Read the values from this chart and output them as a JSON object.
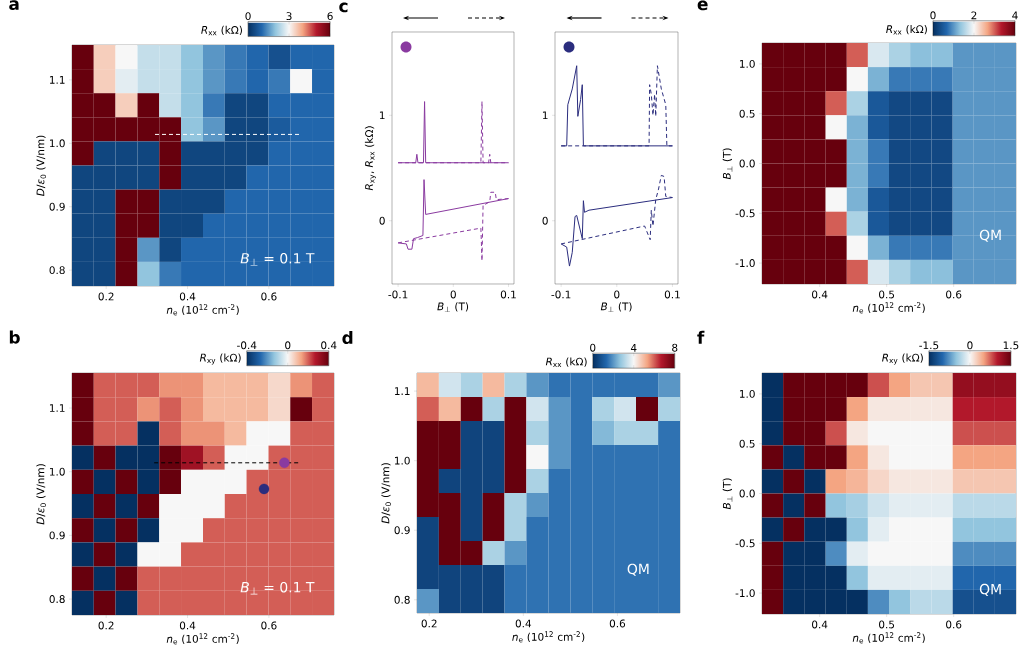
{
  "chart_data": [
    {
      "type": "heatmap",
      "title": "a",
      "xlabel": "*n*$_{e}$ (10$^{12}$ cm$^{-2}$)",
      "ylabel": "*D*/*ε*$_{0}$ (V/nm)",
      "clabel": "*R*$_{xx}$ (kΩ)",
      "annotations": [
        "*B*$_{⊥}$ = 0.1 T"
      ],
      "xlim": [
        0.116,
        0.76
      ],
      "ylim": [
        0.775,
        1.155
      ],
      "xticks": [
        0.2,
        0.4,
        0.6
      ],
      "yticks": [
        0.8,
        0.9,
        {
          "value": 1.0,
          "label": "1.0"
        },
        1.1
      ],
      "clim": [
        0,
        6
      ],
      "cticks": [
        0,
        3,
        6
      ],
      "x": [
        0.143,
        0.196,
        0.25,
        0.304,
        0.357,
        0.411,
        0.465,
        0.518,
        0.572,
        0.626,
        0.679,
        0.733
      ],
      "y": [
        1.136,
        1.098,
        1.06,
        1.022,
        0.984,
        0.946,
        0.908,
        0.87,
        0.832,
        0.794
      ],
      "cells": [
        [
          6,
          3.5,
          3,
          2.5,
          2.5,
          2,
          1.5,
          1.2,
          1,
          0.6,
          1,
          1
        ],
        [
          6,
          3.5,
          2.8,
          2.5,
          2.5,
          2,
          1.5,
          1.2,
          1,
          1.2,
          3,
          1
        ],
        [
          6,
          6,
          3.5,
          6,
          2.5,
          2,
          1.2,
          0.4,
          0.4,
          1,
          1,
          1
        ],
        [
          6,
          6,
          6,
          6,
          6,
          2,
          1.5,
          0.4,
          0.4,
          0.8,
          1,
          1
        ],
        [
          6,
          0.4,
          0.4,
          0.4,
          6,
          0.4,
          0.4,
          0.4,
          0.4,
          1,
          1,
          1
        ],
        [
          0.4,
          0.4,
          0.4,
          0.4,
          6,
          0.4,
          0.4,
          0.4,
          1,
          1,
          1,
          1
        ],
        [
          0.4,
          0.4,
          6,
          6,
          0.4,
          0.4,
          0.4,
          1,
          1,
          1,
          1,
          1
        ],
        [
          0.4,
          0.4,
          6,
          6,
          0.4,
          0.4,
          1,
          1,
          1,
          1,
          1,
          1
        ],
        [
          0.4,
          0.4,
          6,
          1.5,
          0.4,
          1,
          1,
          1,
          1,
          1,
          1,
          1
        ],
        [
          0.4,
          0.4,
          6,
          2,
          1.2,
          1,
          1,
          1,
          1,
          1,
          1,
          1
        ]
      ],
      "series": [
        {
          "type": "line",
          "x": [
            0.32,
            0.68
          ],
          "values": [
            1.014,
            1.014
          ],
          "color": "#ffffff",
          "line_style": "dashed"
        }
      ]
    },
    {
      "type": "line",
      "title": "c",
      "xlabel": "*B*$_{⊥}$ (T)",
      "ylabel": "*R*$_{xy}$, *R*$_{xx}$ (kΩ)",
      "xlim": [
        -0.111,
        0.11
      ],
      "ylim": [
        -0.6,
        1.79
      ],
      "xticks": [
        -0.1,
        0,
        0.1
      ],
      "yticks": [
        0,
        1
      ],
      "series": [
        {
          "color": "#8a3aa0",
          "line_style": "solid",
          "x": [
            -0.1,
            -0.068,
            -0.066,
            -0.064,
            -0.054,
            -0.052,
            -0.05,
            0.1
          ],
          "values": [
            0.55,
            0.55,
            0.63,
            0.55,
            0.55,
            1.13,
            0.55,
            0.55
          ]
        },
        {
          "color": "#8a3aa0",
          "line_style": "dashed",
          "x": [
            -0.1,
            0.05,
            0.052,
            0.054,
            0.064,
            0.066,
            0.068,
            0.1
          ],
          "values": [
            0.55,
            0.55,
            1.13,
            0.55,
            0.55,
            0.63,
            0.55,
            0.55
          ]
        },
        {
          "color": "#8a3aa0",
          "line_style": "solid",
          "x": [
            -0.1,
            -0.085,
            -0.082,
            -0.075,
            -0.072,
            -0.065,
            -0.055,
            -0.053,
            -0.05,
            0.1
          ],
          "values": [
            -0.21,
            -0.22,
            -0.27,
            -0.27,
            -0.17,
            -0.16,
            -0.14,
            0.39,
            0.06,
            0.21
          ]
        },
        {
          "color": "#8a3aa0",
          "line_style": "dashed",
          "x": [
            -0.1,
            0.05,
            0.052,
            0.054,
            0.056,
            0.066,
            0.068,
            0.076,
            0.078,
            0.1
          ],
          "values": [
            -0.21,
            -0.07,
            -0.38,
            0.15,
            0.15,
            0.18,
            0.27,
            0.27,
            0.2,
            0.21
          ]
        }
      ]
    },
    {
      "type": "line",
      "xlabel": "*B*$_{⊥}$ (T)",
      "xlim": [
        -0.111,
        0.11
      ],
      "ylim": [
        -0.6,
        1.79
      ],
      "xticks": [
        -0.1,
        0,
        0.1
      ],
      "yticks": [
        0,
        1
      ],
      "series": [
        {
          "color": "#2b2d7e",
          "line_style": "solid",
          "x": [
            -0.1,
            -0.09,
            -0.088,
            -0.08,
            -0.072,
            -0.07,
            -0.065,
            -0.062,
            -0.06,
            0.1
          ],
          "values": [
            0.71,
            0.71,
            1.1,
            1.25,
            1.47,
            0.99,
            1.15,
            1.29,
            0.71,
            0.71
          ]
        },
        {
          "color": "#2b2d7e",
          "line_style": "dashed",
          "x": [
            -0.1,
            0.058,
            0.059,
            0.062,
            0.065,
            0.068,
            0.07,
            0.073,
            0.08,
            0.088,
            0.09,
            0.1
          ],
          "values": [
            0.71,
            0.71,
            1.29,
            1.2,
            1.0,
            1.2,
            0.99,
            1.47,
            1.25,
            1.1,
            0.71,
            0.71
          ]
        },
        {
          "color": "#2b2d7e",
          "line_style": "solid",
          "x": [
            -0.1,
            -0.09,
            -0.085,
            -0.08,
            -0.075,
            -0.072,
            -0.062,
            -0.06,
            -0.058,
            -0.05,
            0.1
          ],
          "values": [
            -0.22,
            -0.25,
            -0.43,
            -0.3,
            0.04,
            0.05,
            -0.17,
            0.19,
            0.08,
            0.1,
            0.22
          ]
        },
        {
          "color": "#2b2d7e",
          "line_style": "dashed",
          "x": [
            -0.1,
            0.05,
            0.06,
            0.062,
            0.065,
            0.07,
            0.075,
            0.08,
            0.085,
            0.088,
            0.1
          ],
          "values": [
            -0.22,
            -0.05,
            -0.18,
            0.1,
            -0.05,
            0.2,
            0.3,
            0.43,
            0.42,
            0.23,
            0.22
          ]
        }
      ]
    },
    {
      "type": "heatmap",
      "title": "e",
      "xlabel": "*n*$_{e}$ (10$^{12}$ cm$^{-2}$)",
      "ylabel": "*B*$_{⊥}$ (T)",
      "clabel": "*R*$_{xx}$ (kΩ)",
      "annotations": [
        "QM"
      ],
      "xlim": [
        0.314,
        0.693
      ],
      "ylim": [
        -1.21,
        1.21
      ],
      "xticks": [
        0.4,
        0.5,
        0.6
      ],
      "yticks": [
        {
          "value": -1.0,
          "label": "-1.0"
        },
        -0.5,
        {
          "value": 0,
          "label": "0.0"
        },
        0.5,
        {
          "value": 1.0,
          "label": "1.0"
        }
      ],
      "clim": [
        0,
        4
      ],
      "cticks": [
        0,
        2,
        4
      ],
      "x": [
        0.33,
        0.361,
        0.393,
        0.425,
        0.456,
        0.488,
        0.519,
        0.551,
        0.583,
        0.614,
        0.646,
        0.677
      ],
      "y": [
        1.089,
        0.847,
        0.605,
        0.363,
        0.121,
        -0.121,
        -0.363,
        -0.605,
        -0.847,
        -1.089
      ],
      "cells": [
        [
          4,
          4,
          4,
          4,
          3,
          1.8,
          1.5,
          1.3,
          1.3,
          1,
          1,
          1
        ],
        [
          4,
          4,
          4,
          4,
          2,
          1.2,
          0.8,
          0.8,
          0.8,
          1,
          1,
          1
        ],
        [
          4,
          4,
          4,
          3,
          1.5,
          0.5,
          0.3,
          0.3,
          0.3,
          1,
          1,
          1
        ],
        [
          4,
          4,
          4,
          2,
          1.2,
          0.5,
          0.3,
          0.3,
          0.3,
          1,
          1,
          1
        ],
        [
          4,
          4,
          4,
          4,
          1.2,
          0.8,
          0.3,
          0.3,
          0.3,
          1,
          1,
          1
        ],
        [
          4,
          4,
          4,
          4,
          1.2,
          0.8,
          0.3,
          0.3,
          0.3,
          1,
          1,
          1
        ],
        [
          4,
          4,
          4,
          2,
          1.2,
          0.5,
          0.3,
          0.3,
          0.3,
          1,
          1,
          1
        ],
        [
          4,
          4,
          4,
          3,
          1.5,
          0.5,
          0.3,
          0.3,
          0.3,
          1,
          1,
          1
        ],
        [
          4,
          4,
          4,
          4,
          2,
          1.2,
          0.8,
          0.8,
          0.8,
          1,
          1,
          1
        ],
        [
          4,
          4,
          4,
          4,
          3,
          1.8,
          1.5,
          1.3,
          1.3,
          1,
          1,
          1
        ]
      ]
    },
    {
      "type": "heatmap",
      "title": "b",
      "xlabel": "*n*$_{e}$ (10$^{12}$ cm$^{-2}$)",
      "ylabel": "*D*/*ε*$_{0}$ (V/nm)",
      "clabel": "*R*$_{xy}$ (kΩ)",
      "annotations": [
        "*B*$_{⊥}$ = 0.1 T"
      ],
      "xlim": [
        0.116,
        0.76
      ],
      "ylim": [
        0.775,
        1.155
      ],
      "xticks": [
        0.2,
        0.4,
        0.6
      ],
      "yticks": [
        0.8,
        0.9,
        {
          "value": 1.0,
          "label": "1.0"
        },
        1.1
      ],
      "clim": [
        -0.4,
        0.4
      ],
      "cticks": [
        -0.4,
        0,
        0.4
      ],
      "x": [
        0.143,
        0.196,
        0.25,
        0.304,
        0.357,
        0.411,
        0.465,
        0.518,
        0.572,
        0.626,
        0.679,
        0.733
      ],
      "y": [
        1.136,
        1.098,
        1.06,
        1.022,
        0.984,
        0.946,
        0.908,
        0.87,
        0.832,
        0.794
      ],
      "cells": [
        [
          0.4,
          0.2,
          0.2,
          0.2,
          0.15,
          0.15,
          0.1,
          0.1,
          0.1,
          0.05,
          0.15,
          0.2
        ],
        [
          0.4,
          0.2,
          0.2,
          0.15,
          0.2,
          0.15,
          0.1,
          0.1,
          0.1,
          0.05,
          0.4,
          0.2
        ],
        [
          0.4,
          0.2,
          0.2,
          -0.4,
          0.2,
          0.15,
          0.15,
          0.1,
          0,
          0,
          0.2,
          0.2
        ],
        [
          -0.4,
          0.4,
          -0.4,
          -0.4,
          0.4,
          0.3,
          0.2,
          0,
          0,
          0.2,
          0.2,
          0.2
        ],
        [
          0.4,
          -0.4,
          0.4,
          -0.4,
          0.4,
          0,
          0,
          0,
          0.2,
          0.2,
          0.2,
          0.2
        ],
        [
          -0.4,
          0.4,
          -0.4,
          0.4,
          0,
          0,
          0,
          0.2,
          0.2,
          0.2,
          0.2,
          0.2
        ],
        [
          0.4,
          -0.4,
          0.4,
          -0.4,
          0,
          0,
          0.2,
          0.2,
          0.2,
          0.2,
          0.2,
          0.2
        ],
        [
          -0.4,
          0.4,
          -0.4,
          0,
          0,
          0.2,
          0.2,
          0.2,
          0.2,
          0.2,
          0.2,
          0.2
        ],
        [
          0.4,
          -0.4,
          0.4,
          0.2,
          0.2,
          0.2,
          0.2,
          0.2,
          0.2,
          0.2,
          0.2,
          0.2
        ],
        [
          -0.4,
          0.4,
          -0.4,
          0.2,
          0.2,
          0.2,
          0.2,
          0.2,
          0.2,
          0.2,
          0.2,
          0.2
        ]
      ],
      "series": [
        {
          "type": "line",
          "x": [
            0.318,
            0.675
          ],
          "values": [
            1.014,
            1.014
          ],
          "color": "#000000",
          "line_style": "dashed"
        },
        {
          "type": "scatter",
          "x": [
            0.638
          ],
          "values": [
            1.014
          ],
          "color": "#8a3aa0",
          "marker": "circle"
        },
        {
          "type": "scatter",
          "x": [
            0.588
          ],
          "values": [
            0.973
          ],
          "color": "#2b2d7e",
          "marker": "circle"
        }
      ]
    },
    {
      "type": "heatmap",
      "title": "d",
      "xlabel": "*n*$_{e}$ (10$^{12}$ cm$^{-2}$)",
      "ylabel": "*D*/*ε*$_{0}$ (V/nm)",
      "clabel": "*R*$_{xx}$ (kΩ)",
      "annotations": [
        "QM"
      ],
      "xlim": [
        0.174,
        0.733
      ],
      "ylim": [
        0.781,
        1.126
      ],
      "xticks": [
        0.2,
        0.4,
        0.6
      ],
      "yticks": [
        0.8,
        0.9,
        {
          "value": 1.0,
          "label": "1.0"
        },
        1.1
      ],
      "clim": [
        0,
        8
      ],
      "cticks": [
        0,
        4,
        8
      ],
      "x": [
        0.197,
        0.244,
        0.29,
        0.337,
        0.383,
        0.43,
        0.477,
        0.523,
        0.57,
        0.616,
        0.663,
        0.71
      ],
      "y": [
        1.109,
        1.074,
        1.04,
        1.005,
        0.971,
        0.936,
        0.902,
        0.867,
        0.833,
        0.798
      ],
      "cells": [
        [
          5,
          3.5,
          3,
          5,
          3,
          2,
          1.5,
          1.5,
          1.5,
          1.5,
          1.5,
          2
        ],
        [
          6,
          5,
          8,
          3,
          8,
          3.5,
          2,
          1.5,
          3,
          3.5,
          8,
          3
        ],
        [
          8,
          8,
          0.5,
          0.5,
          8,
          3,
          2,
          1.5,
          2.5,
          3,
          3,
          1.5
        ],
        [
          8,
          8,
          0.5,
          0.5,
          8,
          4,
          2,
          1.5,
          1.5,
          1.5,
          1.5,
          1.5
        ],
        [
          8,
          0.5,
          0.5,
          0.5,
          8,
          3,
          1.5,
          1.5,
          1.5,
          1.5,
          1.5,
          1.5
        ],
        [
          8,
          8,
          0.5,
          8,
          3,
          2,
          1.5,
          1.5,
          1.5,
          1.5,
          1.5,
          1.5
        ],
        [
          0.5,
          8,
          0.5,
          8,
          3,
          1.5,
          1.5,
          1.5,
          1.5,
          1.5,
          1.5,
          1.5
        ],
        [
          0.5,
          8,
          8,
          3,
          2,
          1.5,
          1.5,
          1.5,
          1.5,
          1.5,
          1.5,
          1.5
        ],
        [
          0.5,
          0.5,
          0.5,
          0.5,
          1.5,
          1.5,
          1.5,
          1.5,
          1.5,
          1.5,
          1.5,
          1.5
        ],
        [
          2,
          0.5,
          0.5,
          0.5,
          1.5,
          1.5,
          1.5,
          1.5,
          1.5,
          1.5,
          1.5,
          1.5
        ]
      ]
    },
    {
      "type": "heatmap",
      "title": "f",
      "xlabel": "*n*$_{e}$ (10$^{12}$ cm$^{-2}$)",
      "ylabel": "*B*$_{⊥}$ (T)",
      "clabel": "*R*$_{xy}$ (kΩ)",
      "annotations": [
        "QM"
      ],
      "xlim": [
        0.314,
        0.693
      ],
      "ylim": [
        -1.21,
        1.21
      ],
      "xticks": [
        0.4,
        0.5,
        0.6
      ],
      "yticks": [
        {
          "value": -1.0,
          "label": "-1.0"
        },
        -0.5,
        {
          "value": 0,
          "label": "0.0"
        },
        0.5,
        {
          "value": 1.0,
          "label": "1.0"
        }
      ],
      "clim": [
        -1.5,
        1.5
      ],
      "cticks": [
        -1.5,
        0,
        1.5
      ],
      "x": [
        0.33,
        0.361,
        0.393,
        0.425,
        0.456,
        0.488,
        0.519,
        0.551,
        0.583,
        0.614,
        0.646,
        0.677
      ],
      "y": [
        1.089,
        0.847,
        0.605,
        0.363,
        0.121,
        -0.121,
        -0.363,
        -0.605,
        -0.847,
        -1.089
      ],
      "cells": [
        [
          -1.5,
          1.5,
          1.5,
          1.5,
          1.5,
          0.8,
          0.5,
          0.3,
          0.3,
          1.2,
          1.2,
          1.2
        ],
        [
          -1.5,
          1.5,
          1.5,
          1.5,
          0.5,
          0.1,
          0.1,
          0.1,
          0.1,
          1,
          1,
          1
        ],
        [
          -1.5,
          1.5,
          1.5,
          0.8,
          0.1,
          0,
          0,
          0,
          0,
          0.8,
          0.8,
          0.8
        ],
        [
          1.5,
          -1.5,
          1.5,
          1.5,
          0.5,
          0.1,
          0,
          0,
          0,
          0.5,
          0.5,
          0.5
        ],
        [
          -1.5,
          1.5,
          -1.5,
          0.5,
          0.4,
          0.2,
          0.1,
          0.1,
          0.1,
          0.3,
          0.3,
          0.3
        ],
        [
          1.5,
          -1.5,
          1.5,
          -0.5,
          -0.4,
          -0.2,
          -0.1,
          -0.1,
          -0.1,
          -0.3,
          -0.3,
          -0.3
        ],
        [
          -1.5,
          1.5,
          -1.5,
          -1.5,
          -0.5,
          -0.1,
          0,
          0,
          0,
          -0.5,
          -0.5,
          -0.5
        ],
        [
          1.5,
          -1.5,
          -1.5,
          -0.8,
          -0.1,
          0,
          0,
          0,
          0,
          -0.8,
          -0.8,
          -0.8
        ],
        [
          1.5,
          -1.5,
          -1.5,
          -1.5,
          -0.5,
          -0.1,
          -0.1,
          -0.1,
          -0.1,
          -1,
          -1,
          -1
        ],
        [
          1.5,
          -1.5,
          -1.5,
          -1.5,
          -1.5,
          -0.8,
          -0.5,
          -0.3,
          -0.3,
          -1.2,
          -1.2,
          -1.2
        ]
      ]
    }
  ]
}
